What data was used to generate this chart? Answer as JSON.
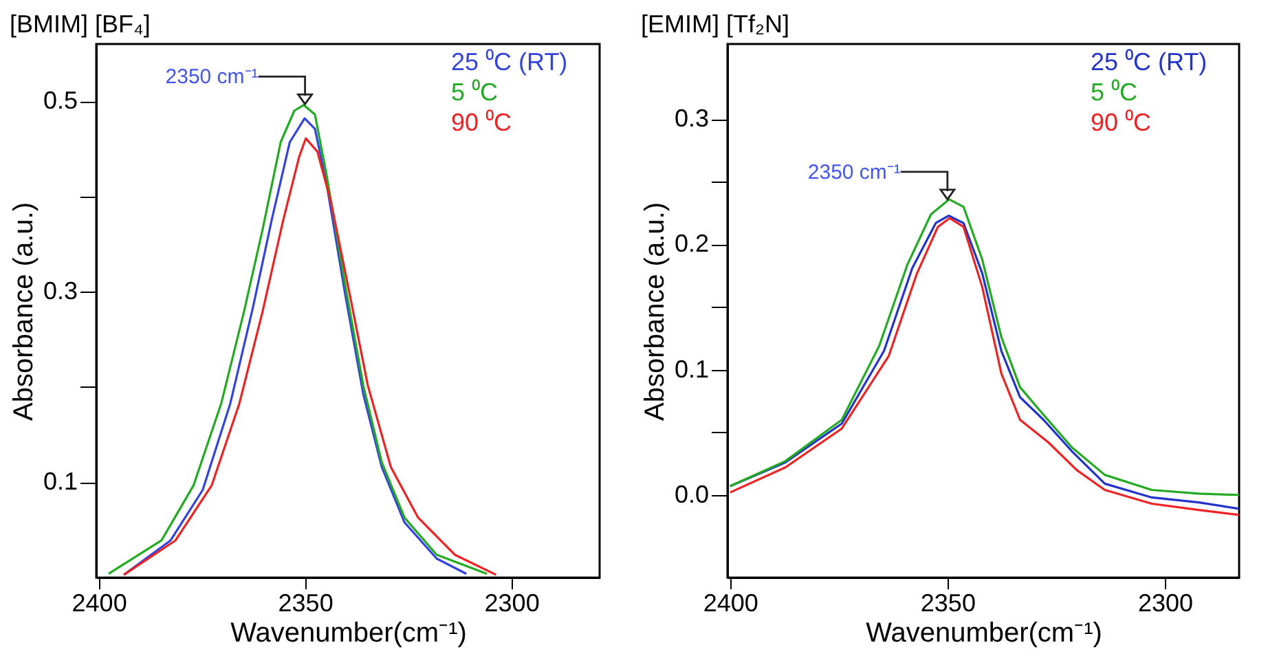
{
  "chart_data": [
    {
      "type": "line",
      "title": "[BMIM] [BF₄]",
      "xlabel": "Wavenumber(cm⁻¹)",
      "ylabel": "Absorbance (a.u.)",
      "xlim": [
        2400.6,
        2278.6
      ],
      "xticks": [
        2400,
        2350,
        2300
      ],
      "ylim": [
        0,
        0.56
      ],
      "yticks": [
        {
          "value": 0.1,
          "label": "0.1"
        },
        {
          "value": 0.2,
          "label": null
        },
        {
          "value": 0.3,
          "label": "0.3"
        },
        {
          "value": 0.4,
          "label": null
        },
        {
          "value": 0.5,
          "label": "0.5"
        }
      ],
      "legend": "top right",
      "marker": "none",
      "line_style": "solid",
      "annotations": [
        {
          "text": "2350 cm⁻¹",
          "x": 2350,
          "y": 0.497
        }
      ],
      "series": [
        {
          "name": "25 ⁰C (RT)",
          "color": "#3344dd",
          "x": [
            2393.9,
            2382.6,
            2374.8,
            2368.1,
            2362.6,
            2358.1,
            2353.7,
            2350.1,
            2347.6,
            2344.8,
            2340.3,
            2335.9,
            2331.4,
            2325.9,
            2318.1,
            2310.9
          ],
          "values": [
            0.003,
            0.039,
            0.092,
            0.183,
            0.284,
            0.375,
            0.457,
            0.482,
            0.471,
            0.414,
            0.298,
            0.193,
            0.116,
            0.058,
            0.02,
            0.004
          ]
        },
        {
          "name": "5 ⁰C",
          "color": "#22aa22",
          "x": [
            2397.6,
            2384.8,
            2377.0,
            2370.3,
            2364.8,
            2360.3,
            2355.9,
            2352.6,
            2350.3,
            2347.6,
            2344.8,
            2340.3,
            2335.9,
            2331.4,
            2325.9,
            2318.1,
            2305.9
          ],
          "values": [
            0.004,
            0.039,
            0.097,
            0.183,
            0.279,
            0.365,
            0.457,
            0.49,
            0.496,
            0.486,
            0.423,
            0.308,
            0.202,
            0.121,
            0.063,
            0.024,
            0.004
          ]
        },
        {
          "name": "90 ⁰C",
          "color": "#ee2222",
          "x": [
            2393.9,
            2381.4,
            2372.6,
            2365.9,
            2360.3,
            2355.3,
            2351.4,
            2349.8,
            2347.0,
            2343.7,
            2339.2,
            2334.8,
            2329.2,
            2322.6,
            2313.7,
            2303.7
          ],
          "values": [
            0.003,
            0.039,
            0.097,
            0.183,
            0.279,
            0.375,
            0.442,
            0.461,
            0.447,
            0.394,
            0.298,
            0.202,
            0.116,
            0.063,
            0.024,
            0.003
          ]
        }
      ]
    },
    {
      "type": "line",
      "title": "[EMIM] [Tf₂N]",
      "xlabel": "Wavenumber(cm⁻¹)",
      "ylabel": "Absorbance (a.u.)",
      "xlim": [
        2400.6,
        2282.9
      ],
      "xticks": [
        2400,
        2350,
        2300
      ],
      "ylim": [
        -0.066,
        0.36
      ],
      "yticks": [
        {
          "value": 0.0,
          "label": "0.0"
        },
        {
          "value": 0.05,
          "label": null
        },
        {
          "value": 0.1,
          "label": "0.1"
        },
        {
          "value": 0.15,
          "label": null
        },
        {
          "value": 0.2,
          "label": "0.2"
        },
        {
          "value": 0.25,
          "label": null
        },
        {
          "value": 0.3,
          "label": "0.3"
        }
      ],
      "legend": "top right",
      "marker": "none",
      "line_style": "solid",
      "annotations": [
        {
          "text": "2350 cm⁻¹",
          "x": 2350,
          "y": 0.236
        }
      ],
      "series": [
        {
          "name": "25 ⁰C (RT)",
          "color": "#2233cc",
          "x": [
            2400,
            2387.3,
            2374.3,
            2364.6,
            2358.1,
            2352.7,
            2349.7,
            2346.3,
            2342.0,
            2337.6,
            2333.3,
            2327.9,
            2321.4,
            2313.8,
            2303.0,
            2292.2,
            2282.9
          ],
          "values": [
            0.007,
            0.026,
            0.057,
            0.115,
            0.181,
            0.217,
            0.223,
            0.217,
            0.177,
            0.115,
            0.078,
            0.06,
            0.035,
            0.009,
            -0.002,
            -0.006,
            -0.011
          ]
        },
        {
          "name": "5   ⁰C",
          "color": "#22aa22",
          "x": [
            2400,
            2387.3,
            2374.3,
            2365.7,
            2359.2,
            2353.8,
            2349.6,
            2346.3,
            2342.0,
            2337.6,
            2333.3,
            2327.9,
            2321.4,
            2313.8,
            2303.0,
            2292.2,
            2282.9
          ],
          "values": [
            0.007,
            0.027,
            0.06,
            0.119,
            0.184,
            0.224,
            0.236,
            0.23,
            0.188,
            0.126,
            0.086,
            0.064,
            0.038,
            0.016,
            0.004,
            0.001,
            0.0
          ]
        },
        {
          "name": "90 ⁰C",
          "color": "#ee2222",
          "x": [
            2400,
            2387.3,
            2374.3,
            2363.5,
            2357.0,
            2352.2,
            2349.5,
            2346.3,
            2342.0,
            2337.6,
            2333.3,
            2326.8,
            2320.3,
            2313.8,
            2303.0,
            2292.2,
            2282.9
          ],
          "values": [
            0.002,
            0.022,
            0.053,
            0.111,
            0.177,
            0.214,
            0.221,
            0.214,
            0.166,
            0.097,
            0.06,
            0.042,
            0.02,
            0.004,
            -0.007,
            -0.012,
            -0.016
          ]
        }
      ]
    }
  ]
}
